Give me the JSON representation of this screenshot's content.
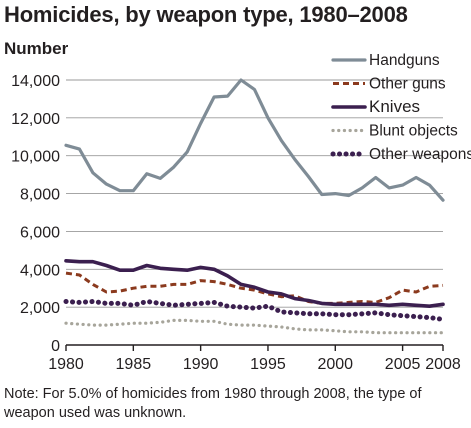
{
  "chart_data": {
    "type": "line",
    "title": "Homicides, by weapon type, 1980–2008",
    "ylabel": "Number",
    "xlabel": "",
    "x_ticks": [
      "1980",
      "1985",
      "1990",
      "1995",
      "2000",
      "2005",
      "2008"
    ],
    "y_ticks": [
      "0",
      "2,000",
      "4,000",
      "6,000",
      "8,000",
      "10,000",
      "12,000",
      "14,000"
    ],
    "xlim": [
      1980,
      2008
    ],
    "ylim": [
      0,
      14000
    ],
    "grid": "horizontal",
    "legend_position": "top-right",
    "x": [
      1980,
      1981,
      1982,
      1983,
      1984,
      1985,
      1986,
      1987,
      1988,
      1989,
      1990,
      1991,
      1992,
      1993,
      1994,
      1995,
      1996,
      1997,
      1998,
      1999,
      2000,
      2001,
      2002,
      2003,
      2004,
      2005,
      2006,
      2007,
      2008
    ],
    "series": [
      {
        "name": "Handguns",
        "color": "#7f8c96",
        "style": "solid",
        "values": [
          10550,
          10350,
          9100,
          8500,
          8150,
          8150,
          9050,
          8800,
          9400,
          10200,
          11700,
          13100,
          13150,
          14000,
          13500,
          12000,
          10800,
          9800,
          8900,
          7950,
          8000,
          7900,
          8300,
          8850,
          8300,
          8450,
          8850,
          8450,
          7650
        ]
      },
      {
        "name": "Other guns",
        "color": "#8b3a1e",
        "style": "dashed",
        "values": [
          3800,
          3700,
          3200,
          2800,
          2850,
          3000,
          3100,
          3100,
          3200,
          3200,
          3400,
          3350,
          3200,
          3000,
          2900,
          2700,
          2550,
          2600,
          2300,
          2200,
          2200,
          2250,
          2300,
          2250,
          2500,
          2900,
          2800,
          3100,
          3150
        ]
      },
      {
        "name": "Knives",
        "color": "#3b1f4f",
        "style": "solid",
        "values": [
          4450,
          4400,
          4400,
          4200,
          3950,
          3950,
          4200,
          4050,
          4000,
          3950,
          4100,
          4000,
          3650,
          3200,
          3050,
          2800,
          2700,
          2450,
          2350,
          2200,
          2150,
          2150,
          2150,
          2150,
          2100,
          2150,
          2100,
          2050,
          2150
        ]
      },
      {
        "name": "Blunt objects",
        "color": "#a7a59b",
        "style": "dotted",
        "values": [
          1150,
          1100,
          1050,
          1050,
          1100,
          1150,
          1150,
          1200,
          1300,
          1300,
          1250,
          1250,
          1100,
          1050,
          1050,
          1000,
          950,
          850,
          800,
          800,
          750,
          700,
          700,
          650,
          650,
          650,
          650,
          650,
          650
        ]
      },
      {
        "name": "Other weapons",
        "color": "#3b1f4f",
        "style": "dotted-heavy",
        "values": [
          2300,
          2250,
          2300,
          2200,
          2200,
          2100,
          2300,
          2200,
          2100,
          2150,
          2200,
          2250,
          2050,
          2000,
          1950,
          2050,
          1750,
          1700,
          1650,
          1650,
          1600,
          1600,
          1650,
          1700,
          1600,
          1550,
          1500,
          1450,
          1350
        ]
      }
    ]
  },
  "footnote": "Note: For 5.0% of homicides from 1980 through 2008, the type of weapon used was unknown."
}
